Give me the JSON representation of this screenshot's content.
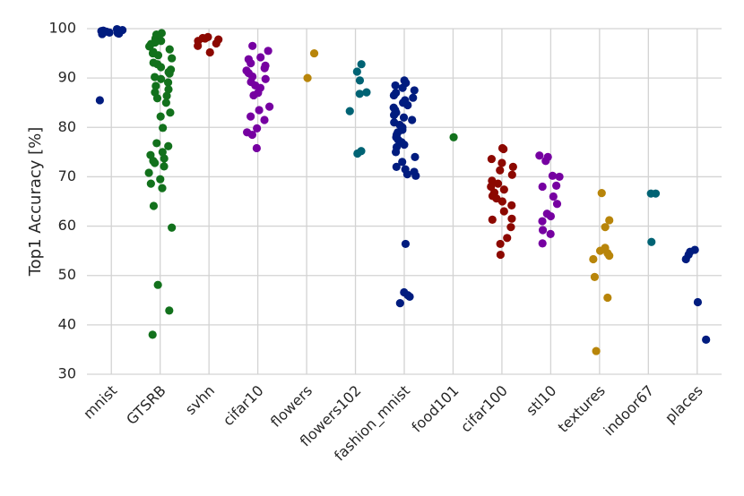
{
  "chart_data": {
    "type": "strip",
    "y_label": "Top1 Accuracy [%]",
    "categories": [
      "mnist",
      "GTSRB",
      "svhn",
      "cifar10",
      "flowers",
      "flowers102",
      "fashion_mnist",
      "food101",
      "cifar100",
      "stl10",
      "textures",
      "indoor67",
      "places"
    ],
    "palette": [
      "#001c7f",
      "#12711c",
      "#8c0800",
      "#7600a1",
      "#b8850a",
      "#006374"
    ],
    "values": [
      [
        99.9,
        99.5,
        99.2,
        99.0,
        99.6,
        99.3,
        98.9,
        99.7,
        99.4,
        99.1,
        85.5
      ],
      [
        99.1,
        98.5,
        98.0,
        97.5,
        96.9,
        96.4,
        95.8,
        95.3,
        94.6,
        94.0,
        93.1,
        92.2,
        91.7,
        90.9,
        90.2,
        89.8,
        89.1,
        88.4,
        87.7,
        87.1,
        86.4,
        85.9,
        85.0,
        83.0,
        82.2,
        79.9,
        76.8,
        76.2,
        75.0,
        74.4,
        73.7,
        73.2,
        72.8,
        72.1,
        70.8,
        69.5,
        68.6,
        67.7,
        64.1,
        59.7,
        48.1,
        42.9,
        38.0,
        98.8,
        97.2,
        95.0,
        92.8,
        91.2
      ],
      [
        98.3,
        98.0,
        97.8,
        97.5,
        97.0,
        96.5,
        95.2,
        98.1
      ],
      [
        96.5,
        95.5,
        94.2,
        93.8,
        93.0,
        92.5,
        92.0,
        91.5,
        91.0,
        90.3,
        89.8,
        89.2,
        88.5,
        88.0,
        87.0,
        86.5,
        84.2,
        83.5,
        82.2,
        81.5,
        79.8,
        79.0,
        78.5,
        75.8
      ],
      [
        95.0,
        90.0
      ],
      [
        92.8,
        91.3,
        89.5,
        87.1,
        86.8,
        83.3,
        75.2,
        74.7
      ],
      [
        89.5,
        89.0,
        88.5,
        88.0,
        87.5,
        87.0,
        86.5,
        86.0,
        85.5,
        85.0,
        84.5,
        84.0,
        83.5,
        83.0,
        82.5,
        82.0,
        81.5,
        81.0,
        80.5,
        80.0,
        79.5,
        79.0,
        78.5,
        78.0,
        77.5,
        77.0,
        76.5,
        76.0,
        75.0,
        74.0,
        73.0,
        72.0,
        71.5,
        71.0,
        70.5,
        70.2,
        56.4,
        46.6,
        46.0,
        45.7,
        44.4
      ],
      [
        78.0
      ],
      [
        75.8,
        75.6,
        73.6,
        72.8,
        72.0,
        71.3,
        70.4,
        69.2,
        68.6,
        68.0,
        67.4,
        66.8,
        66.1,
        65.6,
        65.0,
        64.2,
        63.0,
        61.5,
        61.3,
        59.8,
        57.6,
        56.4,
        54.2
      ],
      [
        74.3,
        74.0,
        73.2,
        70.2,
        70.0,
        68.2,
        68.0,
        66.0,
        64.5,
        62.5,
        62.0,
        61.0,
        59.2,
        58.4,
        56.5
      ],
      [
        66.7,
        61.2,
        59.8,
        55.6,
        55.0,
        54.5,
        54.0,
        53.3,
        49.7,
        45.5,
        34.7
      ],
      [
        66.6,
        66.6,
        56.8
      ],
      [
        55.2,
        54.8,
        54.2,
        53.3,
        44.6,
        37.0
      ]
    ],
    "ylim": [
      30,
      100
    ],
    "yticks": [
      30,
      40,
      50,
      60,
      70,
      80,
      90,
      100
    ],
    "grid": true
  }
}
